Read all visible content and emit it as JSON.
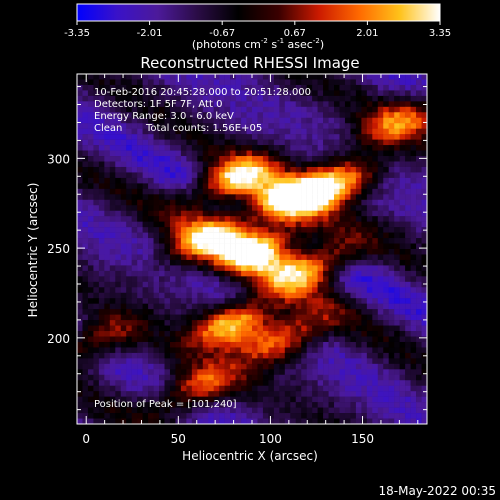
{
  "chart_data": {
    "type": "heatmap",
    "title": "Reconstructed RHESSI Image",
    "xlabel": "Heliocentric X (arcsec)",
    "ylabel": "Heliocentric Y (arcsec)",
    "xlim": [
      -5,
      185
    ],
    "ylim": [
      152,
      347
    ],
    "x_ticks": [
      0,
      50,
      100,
      150
    ],
    "y_ticks": [
      200,
      250,
      300
    ],
    "colorbar": {
      "min": -3.35,
      "max": 3.35,
      "ticks": [
        "-3.35",
        "-2.01",
        "-0.67",
        "0.67",
        "2.01",
        "3.35"
      ],
      "unit_parts": [
        "(photons cm",
        "-2",
        " s",
        "-1",
        " asec",
        "-2",
        ")"
      ],
      "colors": [
        "#0000ff",
        "#3a12c8",
        "#4c1a9a",
        "#2a0c45",
        "#000000",
        "#3a0000",
        "#cc1a00",
        "#ff6a00",
        "#ffc21a",
        "#ffffff"
      ]
    },
    "annotations": [
      "10-Feb-2016 20:45:28.000 to 20:51:28.000",
      "Detectors: 1F 5F 7F, Att 0",
      "Energy Range: 3.0 - 6.0 keV",
      "Clean",
      "Total counts: 1.56E+05"
    ],
    "peak_label": "Position of Peak = [101,240]",
    "peak": [
      101,
      240
    ],
    "sources": [
      {
        "x": 80,
        "y": 288,
        "value": 3.2
      },
      {
        "x": 110,
        "y": 278,
        "value": 3.0
      },
      {
        "x": 135,
        "y": 285,
        "value": 2.6
      },
      {
        "x": 95,
        "y": 250,
        "value": 3.35
      },
      {
        "x": 122,
        "y": 240,
        "value": 3.0
      },
      {
        "x": 65,
        "y": 255,
        "value": 2.5
      },
      {
        "x": 80,
        "y": 208,
        "value": 3.0
      },
      {
        "x": 108,
        "y": 200,
        "value": 2.2
      },
      {
        "x": 60,
        "y": 172,
        "value": 1.8
      },
      {
        "x": 170,
        "y": 320,
        "value": 1.8
      },
      {
        "x": 5,
        "y": 198,
        "value": 1.2
      }
    ]
  },
  "footer": {
    "timestamp": "18-May-2022 00:35"
  }
}
